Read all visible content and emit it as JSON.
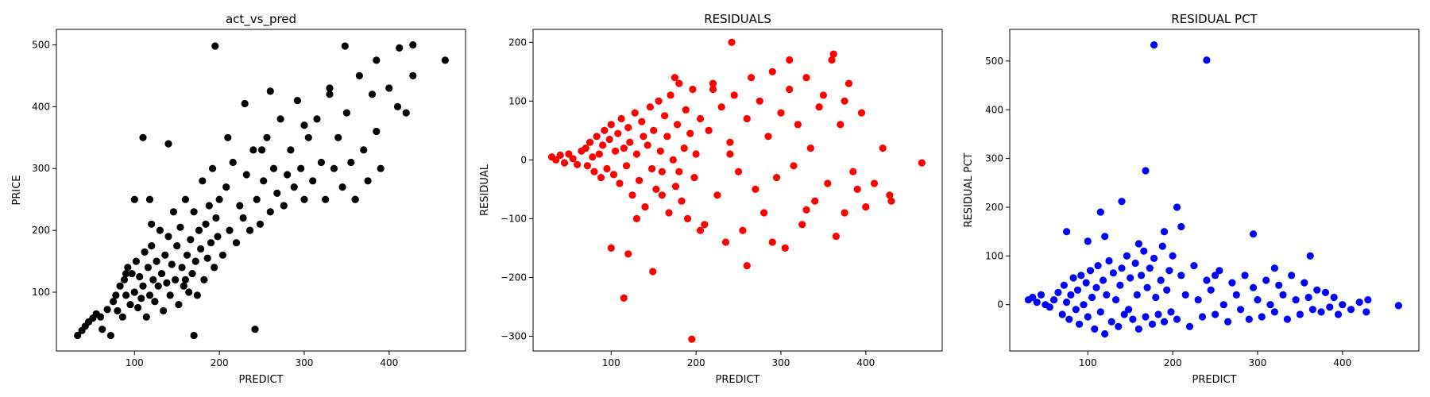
{
  "chart_data": [
    {
      "type": "scatter",
      "title": "act_vs_pred",
      "xlabel": "PREDICT",
      "ylabel": "PRICE",
      "xlim": [
        8,
        490
      ],
      "ylim": [
        5,
        525
      ],
      "xticks": [
        100,
        200,
        300,
        400
      ],
      "yticks": [
        100,
        200,
        300,
        400,
        500
      ],
      "color": "#000000",
      "grid": false,
      "series": [
        {
          "x": [
            33,
            38,
            42,
            46,
            51,
            55,
            60,
            62,
            68,
            72,
            75,
            78,
            80,
            83,
            86,
            88,
            90,
            92,
            95,
            97,
            100,
            102,
            104,
            106,
            108,
            110,
            112,
            114,
            116,
            118,
            120,
            122,
            124,
            126,
            128,
            130,
            132,
            134,
            136,
            138,
            140,
            142,
            144,
            146,
            148,
            150,
            152,
            154,
            156,
            158,
            160,
            162,
            164,
            166,
            168,
            170,
            172,
            174,
            176,
            178,
            180,
            182,
            184,
            186,
            188,
            190,
            192,
            194,
            196,
            198,
            200,
            204,
            208,
            212,
            216,
            220,
            224,
            228,
            232,
            236,
            240,
            244,
            248,
            252,
            256,
            260,
            264,
            268,
            272,
            276,
            280,
            284,
            288,
            292,
            296,
            300,
            305,
            310,
            315,
            320,
            325,
            330,
            335,
            340,
            345,
            350,
            355,
            360,
            365,
            370,
            375,
            380,
            385,
            390,
            400,
            410,
            420,
            428,
            466,
            110,
            118,
            195,
            242,
            348,
            412,
            428,
            385,
            360,
            140,
            90,
            100,
            120,
            170,
            210,
            260,
            300,
            330,
            250,
            230,
            160
          ],
          "y": [
            30,
            38,
            45,
            52,
            58,
            65,
            60,
            40,
            72,
            30,
            85,
            95,
            70,
            110,
            60,
            120,
            95,
            140,
            80,
            130,
            100,
            150,
            75,
            125,
            90,
            110,
            165,
            60,
            140,
            95,
            175,
            120,
            85,
            150,
            110,
            200,
            130,
            70,
            160,
            115,
            190,
            95,
            145,
            230,
            120,
            175,
            80,
            205,
            140,
            110,
            250,
            160,
            100,
            185,
            130,
            230,
            150,
            95,
            200,
            170,
            280,
            120,
            210,
            155,
            240,
            180,
            300,
            140,
            220,
            190,
            250,
            160,
            270,
            200,
            310,
            180,
            240,
            220,
            290,
            200,
            330,
            250,
            210,
            280,
            350,
            230,
            300,
            260,
            380,
            240,
            290,
            330,
            270,
            410,
            300,
            250,
            350,
            280,
            380,
            310,
            250,
            430,
            300,
            350,
            270,
            390,
            310,
            250,
            450,
            330,
            280,
            420,
            360,
            300,
            430,
            400,
            390,
            500,
            475,
            350,
            250,
            498,
            40,
            498,
            495,
            450,
            475,
            250,
            340,
            130,
            250,
            210,
            30,
            350,
            425,
            370,
            420,
            330,
            405,
            120
          ]
        }
      ]
    },
    {
      "type": "scatter",
      "title": "RESIDUALS",
      "xlabel": "PREDICT",
      "ylabel": "RESIDUAL",
      "xlim": [
        8,
        490
      ],
      "ylim": [
        -325,
        222
      ],
      "xticks": [
        100,
        200,
        300,
        400
      ],
      "yticks": [
        -300,
        -200,
        -100,
        0,
        100,
        200
      ],
      "color": "#ff0000",
      "grid": false,
      "series": [
        {
          "x": [
            30,
            35,
            40,
            45,
            50,
            55,
            60,
            65,
            70,
            72,
            75,
            78,
            80,
            83,
            86,
            88,
            90,
            92,
            95,
            98,
            100,
            103,
            105,
            108,
            110,
            112,
            115,
            118,
            120,
            122,
            125,
            128,
            130,
            133,
            136,
            138,
            140,
            143,
            146,
            148,
            150,
            153,
            156,
            158,
            160,
            163,
            166,
            168,
            170,
            173,
            176,
            178,
            180,
            183,
            186,
            188,
            190,
            193,
            196,
            198,
            200,
            205,
            210,
            215,
            220,
            225,
            230,
            235,
            240,
            245,
            250,
            255,
            260,
            265,
            270,
            275,
            280,
            285,
            290,
            295,
            300,
            305,
            310,
            315,
            320,
            325,
            330,
            335,
            340,
            345,
            350,
            355,
            360,
            365,
            370,
            375,
            380,
            385,
            390,
            395,
            400,
            410,
            420,
            428,
            430,
            466,
            115,
            242,
            195,
            149,
            205,
            120,
            175,
            260,
            290,
            330,
            362,
            375,
            240,
            180,
            100,
            130,
            160,
            220,
            310
          ],
          "y": [
            5,
            0,
            8,
            -5,
            10,
            2,
            -8,
            15,
            20,
            -10,
            30,
            5,
            -20,
            40,
            10,
            -30,
            25,
            50,
            -15,
            35,
            60,
            -25,
            15,
            45,
            -40,
            70,
            20,
            -10,
            55,
            30,
            -60,
            80,
            10,
            -35,
            65,
            40,
            -80,
            25,
            90,
            -15,
            50,
            -50,
            100,
            15,
            -20,
            75,
            40,
            -90,
            110,
            0,
            -45,
            60,
            130,
            -70,
            20,
            85,
            -100,
            45,
            120,
            -30,
            10,
            70,
            -110,
            50,
            130,
            -60,
            90,
            -140,
            30,
            110,
            -20,
            -120,
            70,
            140,
            -50,
            100,
            -90,
            40,
            150,
            -30,
            80,
            -150,
            120,
            -10,
            60,
            -110,
            140,
            20,
            -70,
            90,
            110,
            -40,
            170,
            -130,
            60,
            -90,
            130,
            -20,
            -50,
            80,
            -80,
            -40,
            20,
            -60,
            -70,
            -5,
            -235,
            200,
            -305,
            -190,
            -120,
            -160,
            140,
            -180,
            -140,
            -85,
            180,
            100,
            10,
            -20,
            -150,
            -100,
            -60,
            120,
            170
          ]
        }
      ]
    },
    {
      "type": "scatter",
      "title": "RESIDUAL PCT",
      "xlabel": "PREDICT",
      "ylabel": "RESIDUAL PCT",
      "xlim": [
        8,
        490
      ],
      "ylim": [
        -95,
        565
      ],
      "xticks": [
        100,
        200,
        300,
        400
      ],
      "yticks": [
        0,
        100,
        200,
        300,
        400,
        500
      ],
      "color": "#0000ff",
      "grid": false,
      "series": [
        {
          "x": [
            30,
            35,
            40,
            45,
            50,
            55,
            60,
            65,
            70,
            72,
            75,
            78,
            80,
            83,
            86,
            88,
            90,
            92,
            95,
            98,
            100,
            103,
            105,
            108,
            110,
            112,
            115,
            118,
            120,
            122,
            125,
            128,
            130,
            133,
            136,
            138,
            140,
            143,
            146,
            148,
            150,
            153,
            156,
            158,
            160,
            163,
            166,
            168,
            170,
            173,
            176,
            178,
            180,
            183,
            186,
            188,
            190,
            193,
            196,
            198,
            200,
            205,
            210,
            215,
            220,
            225,
            230,
            235,
            240,
            245,
            250,
            255,
            260,
            265,
            270,
            275,
            280,
            285,
            290,
            295,
            300,
            305,
            310,
            315,
            320,
            325,
            330,
            335,
            340,
            345,
            350,
            355,
            360,
            365,
            370,
            375,
            380,
            385,
            390,
            395,
            400,
            410,
            420,
            428,
            430,
            466,
            178,
            240,
            168,
            140,
            75,
            100,
            115,
            205,
            210,
            190,
            295,
            362,
            120,
            160,
            250,
            320
          ],
          "y": [
            10,
            15,
            5,
            20,
            0,
            -5,
            10,
            25,
            -20,
            40,
            5,
            -30,
            20,
            55,
            -10,
            30,
            -40,
            60,
            0,
            45,
            -25,
            70,
            15,
            -50,
            35,
            80,
            -15,
            50,
            -60,
            20,
            90,
            -35,
            65,
            10,
            -45,
            40,
            75,
            -20,
            100,
            -10,
            55,
            -30,
            85,
            20,
            -50,
            60,
            110,
            -25,
            35,
            75,
            -40,
            95,
            15,
            -20,
            50,
            120,
            -35,
            30,
            70,
            -15,
            100,
            -30,
            60,
            20,
            -45,
            80,
            10,
            -25,
            50,
            30,
            -20,
            70,
            0,
            -35,
            45,
            20,
            -10,
            60,
            -30,
            35,
            10,
            -25,
            50,
            0,
            -15,
            40,
            20,
            -30,
            60,
            10,
            -20,
            45,
            15,
            -10,
            30,
            -15,
            25,
            -5,
            15,
            -20,
            0,
            -10,
            5,
            -15,
            10,
            -2,
            533,
            502,
            275,
            212,
            150,
            130,
            190,
            200,
            160,
            150,
            145,
            100,
            140,
            125,
            60,
            75
          ]
        }
      ]
    }
  ]
}
